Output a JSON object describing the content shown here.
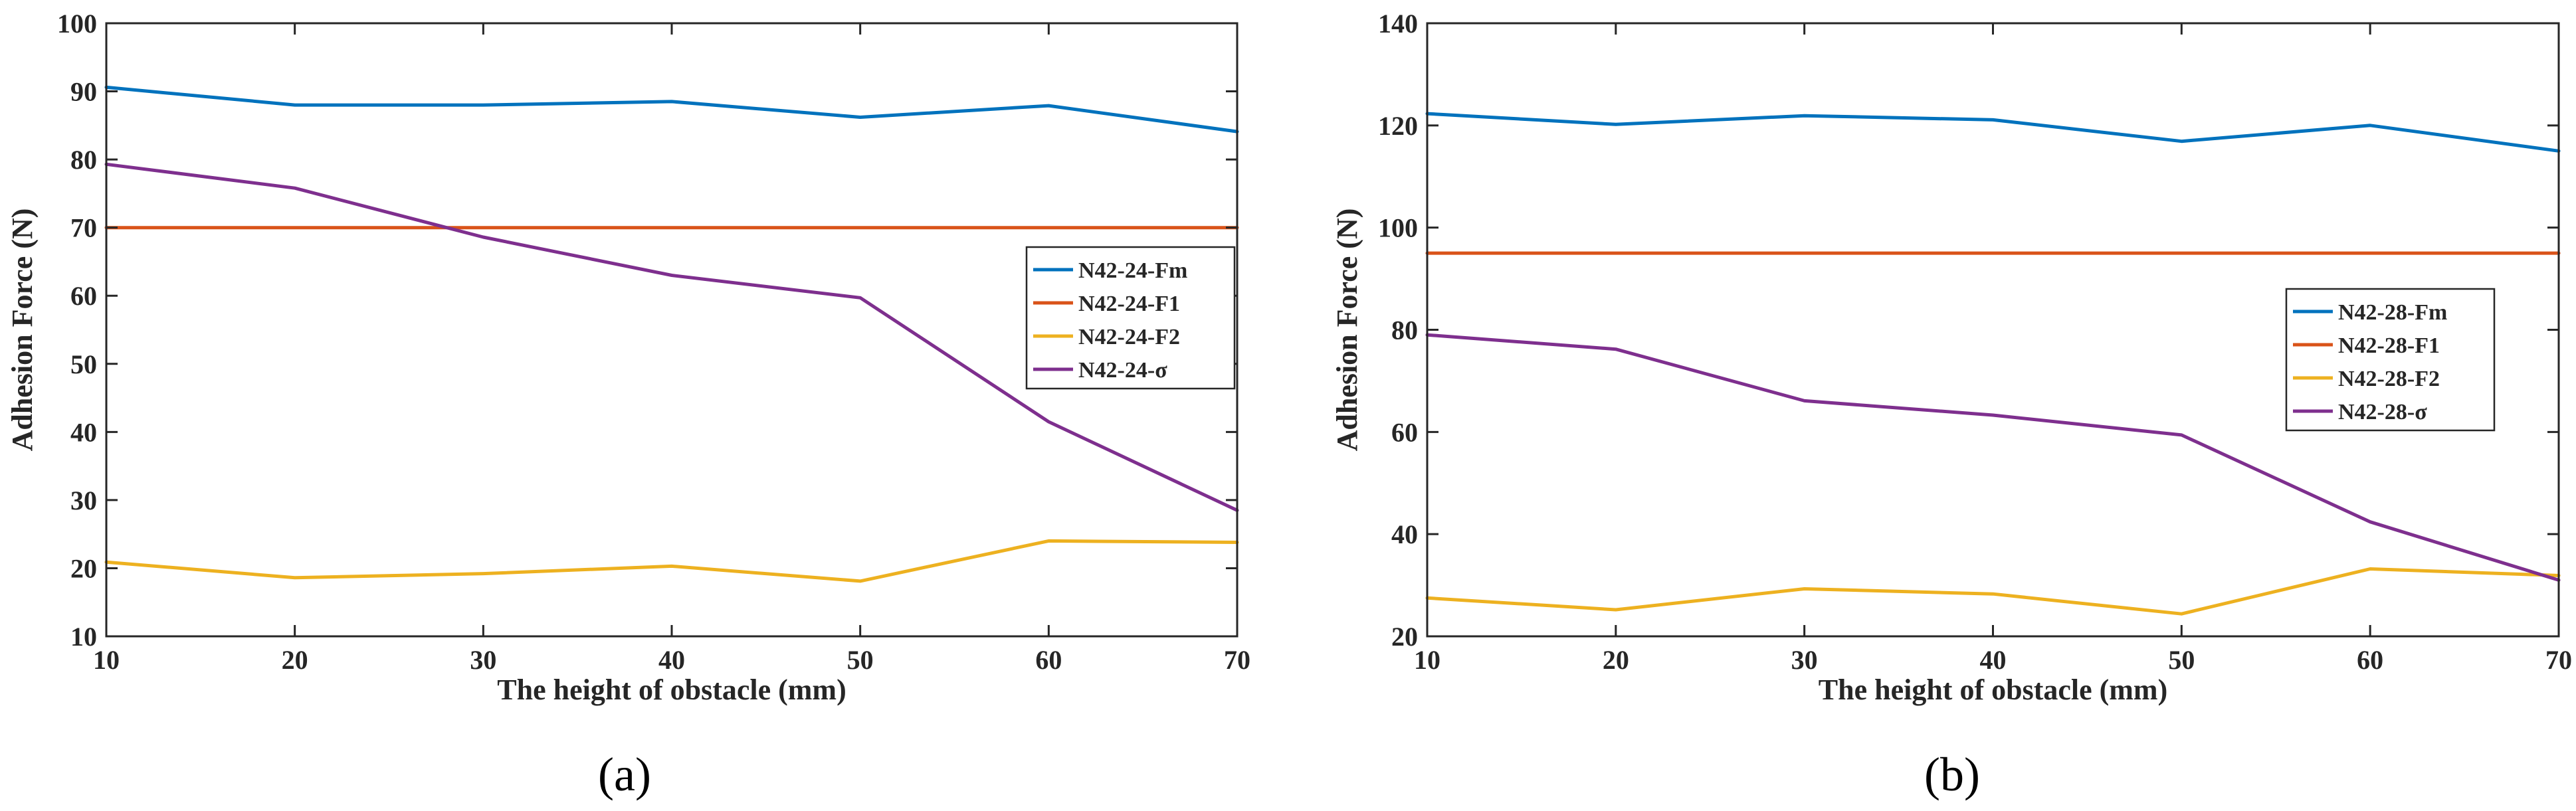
{
  "chart_data": [
    {
      "type": "line",
      "panel_label": "(a)",
      "title": "",
      "xlabel": "The height of obstacle (mm)",
      "ylabel": "Adhesion Force (N)",
      "xlim": [
        10,
        70
      ],
      "ylim": [
        10,
        100
      ],
      "xticks": [
        10,
        20,
        30,
        40,
        50,
        60,
        70
      ],
      "yticks": [
        10,
        20,
        30,
        40,
        50,
        60,
        70,
        80,
        90,
        100
      ],
      "x": [
        10,
        20,
        30,
        40,
        50,
        60,
        70
      ],
      "legend_position": "right",
      "series": [
        {
          "name": "N42-24-Fm",
          "color": "#0072BD",
          "values": [
            90.6,
            88.0,
            88.0,
            88.5,
            86.2,
            87.9,
            84.1
          ]
        },
        {
          "name": "N42-24-F1",
          "color": "#D95319",
          "values": [
            70,
            70,
            70,
            70,
            70,
            70,
            70
          ]
        },
        {
          "name": "N42-24-F2",
          "color": "#EDB120",
          "values": [
            20.9,
            18.6,
            19.2,
            20.3,
            18.1,
            24.0,
            23.8
          ]
        },
        {
          "name": "N42-24-σ",
          "color": "#7E2F8E",
          "values": [
            79.3,
            75.8,
            68.6,
            63.0,
            59.7,
            41.5,
            28.5
          ]
        }
      ]
    },
    {
      "type": "line",
      "panel_label": "(b)",
      "title": "",
      "xlabel": "The height of obstacle (mm)",
      "ylabel": "Adhesion Force (N)",
      "xlim": [
        10,
        70
      ],
      "ylim": [
        20,
        140
      ],
      "xticks": [
        10,
        20,
        30,
        40,
        50,
        60,
        70
      ],
      "yticks": [
        20,
        40,
        60,
        80,
        100,
        120,
        140
      ],
      "x": [
        10,
        20,
        30,
        40,
        50,
        60,
        70
      ],
      "legend_position": "right",
      "series": [
        {
          "name": "N42-28-Fm",
          "color": "#0072BD",
          "values": [
            122.3,
            120.2,
            121.9,
            121.1,
            116.9,
            120.0,
            115.0
          ]
        },
        {
          "name": "N42-28-F1",
          "color": "#D95319",
          "values": [
            95,
            95,
            95,
            95,
            95,
            95,
            95
          ]
        },
        {
          "name": "N42-28-F2",
          "color": "#EDB120",
          "values": [
            27.5,
            25.2,
            29.3,
            28.3,
            24.4,
            33.2,
            31.9
          ]
        },
        {
          "name": "N42-28-σ",
          "color": "#7E2F8E",
          "values": [
            79.0,
            76.2,
            66.1,
            63.3,
            59.4,
            42.4,
            31.0
          ]
        }
      ]
    }
  ]
}
